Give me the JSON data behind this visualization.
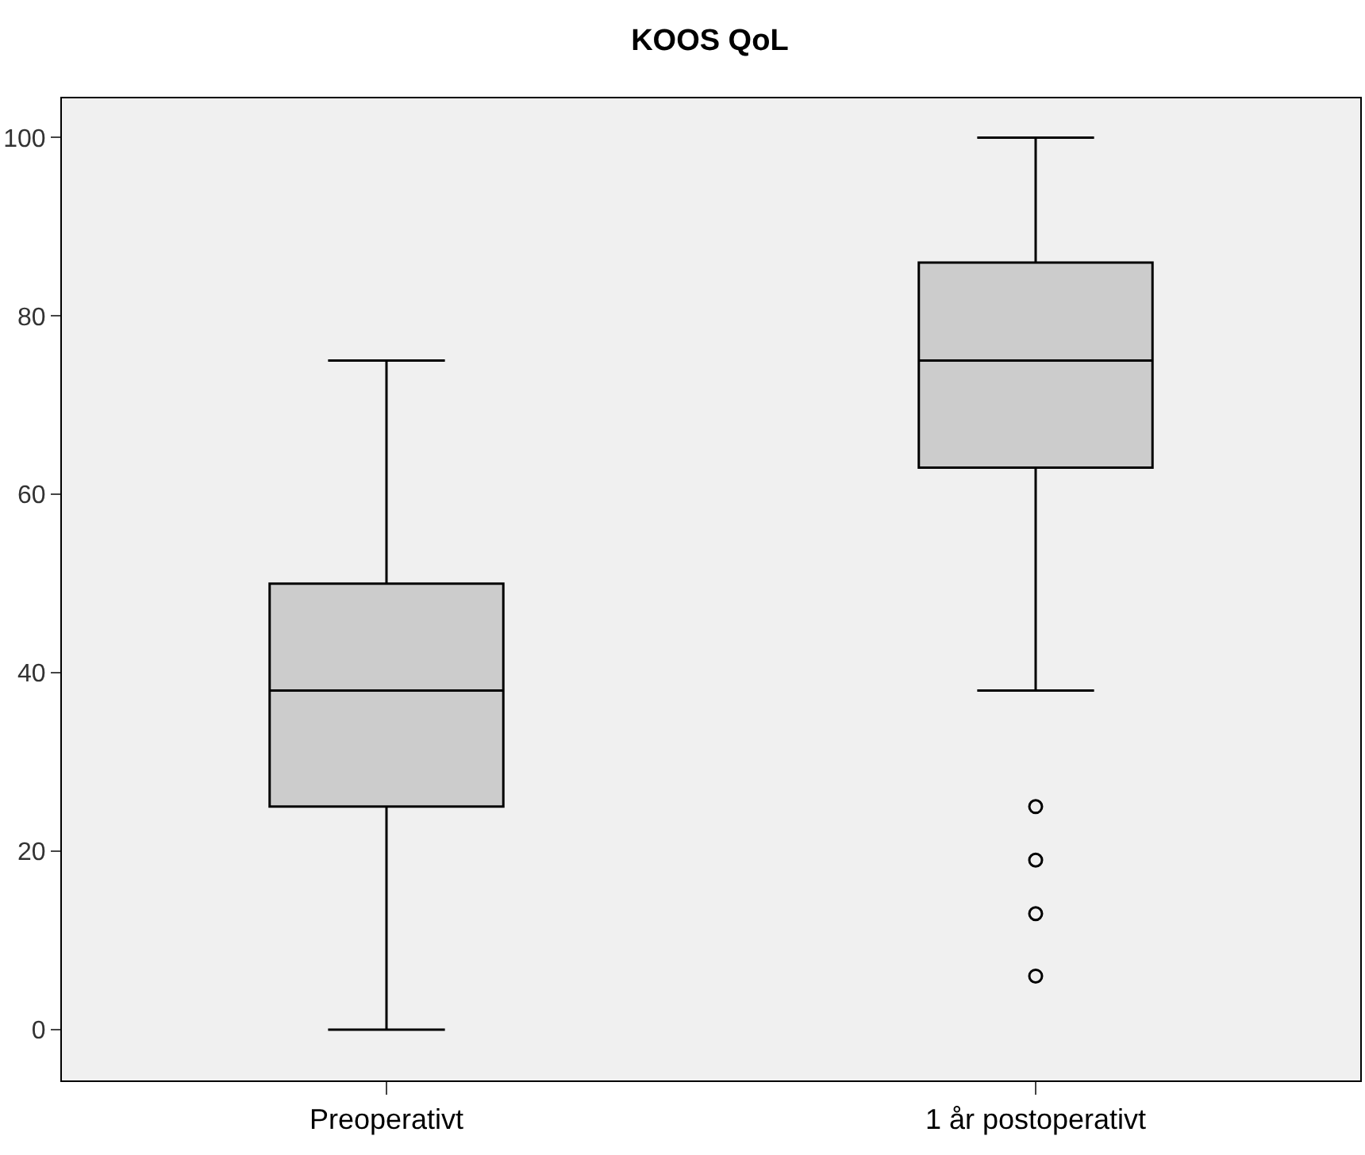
{
  "chart_data": {
    "type": "box",
    "title": "KOOS QoL",
    "categories": [
      "Preoperativt",
      "1 år postoperativt"
    ],
    "color": "#cccccc",
    "boxes": [
      {
        "low": 0,
        "q1": 25,
        "median": 38,
        "q3": 50,
        "high": 75
      },
      {
        "low": 38,
        "q1": 63,
        "median": 75,
        "q3": 86,
        "high": 100,
        "outliers": [
          25,
          19,
          13,
          6
        ]
      }
    ],
    "ylim": [
      -5.7,
      104.4
    ],
    "yticks": [
      0,
      20,
      40,
      60,
      80,
      100
    ],
    "marker": "circle"
  }
}
